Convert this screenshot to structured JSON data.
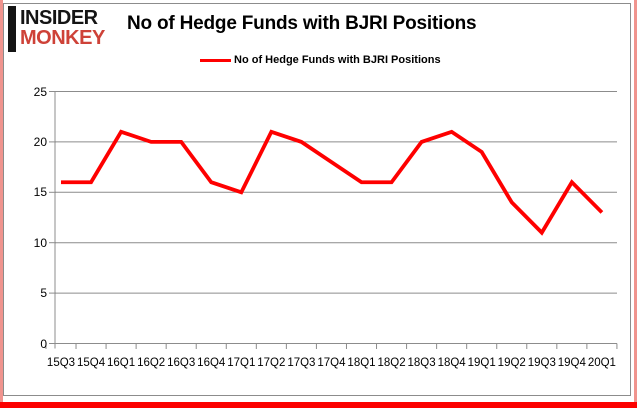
{
  "logo": {
    "line1": "INSIDER",
    "line2": "MONKEY"
  },
  "header": {
    "title": "No of Hedge Funds with BJRI Positions"
  },
  "legend": {
    "label": "No of Hedge Funds with BJRI Positions"
  },
  "chart_data": {
    "type": "line",
    "title": "No of Hedge Funds with BJRI Positions",
    "categories": [
      "15Q3",
      "15Q4",
      "16Q1",
      "16Q2",
      "16Q3",
      "16Q4",
      "17Q1",
      "17Q2",
      "17Q3",
      "17Q4",
      "18Q1",
      "18Q2",
      "18Q3",
      "18Q4",
      "19Q1",
      "19Q2",
      "19Q3",
      "19Q4",
      "20Q1"
    ],
    "series": [
      {
        "name": "No of Hedge Funds with BJRI Positions",
        "color": "#fe0000",
        "values": [
          16,
          16,
          21,
          20,
          20,
          16,
          15,
          21,
          20,
          18,
          16,
          16,
          20,
          21,
          19,
          14,
          11,
          16,
          13
        ]
      }
    ],
    "xlabel": "",
    "ylabel": "",
    "ylim": [
      0,
      25
    ],
    "yticks": [
      0,
      5,
      10,
      15,
      20,
      25
    ],
    "grid": true,
    "legend_position": "top-center"
  },
  "colors": {
    "line": "#fe0000",
    "grid": "#8c8c8c",
    "axis": "#8c8c8c",
    "frame": "#8c8c8c",
    "border_side": "#f0948e",
    "border_bottom": "#fc0100",
    "logo_insider": "#141414",
    "logo_monkey": "#ce4238",
    "text": "#000000"
  }
}
